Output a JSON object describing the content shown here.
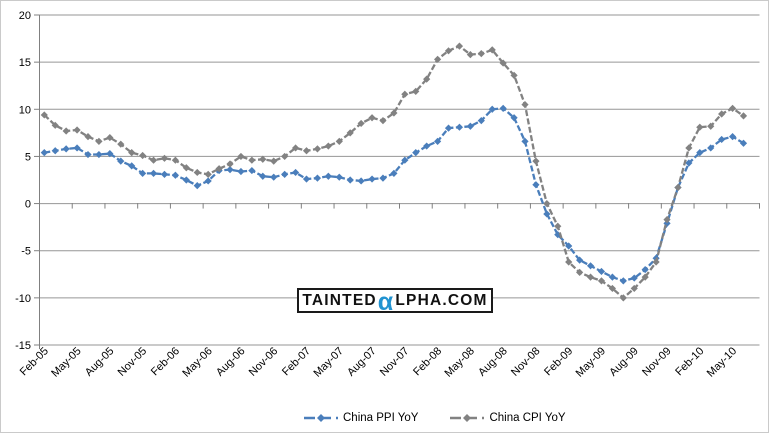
{
  "watermark": {
    "prefix": "TAINTED",
    "alpha": "α",
    "suffix": "LPHA.COM"
  },
  "colors": {
    "gridline": "#969696",
    "axis": "#808080",
    "tick_text": "#000000",
    "frame_border": "#CACACA",
    "watermark_border": "#1A1A1A",
    "watermark_alpha": "#2193D1",
    "ppi_blue": "#4A7EBB",
    "cpi_gray": "#828282"
  },
  "chart_data": {
    "type": "line",
    "title": "",
    "xlabel": "",
    "ylabel": "",
    "ylim": [
      -15,
      20
    ],
    "y_ticks": [
      20,
      15,
      10,
      5,
      0,
      -5,
      -10,
      -15
    ],
    "grid": "horizontal",
    "legend_position": "bottom",
    "marker": "diamond",
    "line_style": "dashed",
    "x_label_interval": 3,
    "x_tick_labels": [
      "Feb-05",
      "May-05",
      "Aug-05",
      "Nov-05",
      "Feb-06",
      "May-06",
      "Aug-06",
      "Nov-06",
      "Feb-07",
      "May-07",
      "Aug-07",
      "Nov-07",
      "Feb-08",
      "May-08",
      "Aug-08",
      "Nov-08",
      "Feb-09",
      "May-09",
      "Aug-09",
      "Nov-09",
      "Feb-10",
      "May-10"
    ],
    "categories": [
      "Feb-05",
      "Mar-05",
      "Apr-05",
      "May-05",
      "Jun-05",
      "Jul-05",
      "Aug-05",
      "Sep-05",
      "Oct-05",
      "Nov-05",
      "Dec-05",
      "Jan-06",
      "Feb-06",
      "Mar-06",
      "Apr-06",
      "May-06",
      "Jun-06",
      "Jul-06",
      "Aug-06",
      "Sep-06",
      "Oct-06",
      "Nov-06",
      "Dec-06",
      "Jan-07",
      "Feb-07",
      "Mar-07",
      "Apr-07",
      "May-07",
      "Jun-07",
      "Jul-07",
      "Aug-07",
      "Sep-07",
      "Oct-07",
      "Nov-07",
      "Dec-07",
      "Jan-08",
      "Feb-08",
      "Mar-08",
      "Apr-08",
      "May-08",
      "Jun-08",
      "Jul-08",
      "Aug-08",
      "Sep-08",
      "Oct-08",
      "Nov-08",
      "Dec-08",
      "Jan-09",
      "Feb-09",
      "Mar-09",
      "Apr-09",
      "May-09",
      "Jun-09",
      "Jul-09",
      "Aug-09",
      "Sep-09",
      "Oct-09",
      "Nov-09",
      "Dec-09",
      "Jan-10",
      "Feb-10",
      "Mar-10",
      "Apr-10",
      "May-10",
      "Jun-10"
    ],
    "series": [
      {
        "name": "China PPI YoY",
        "color": "#4A7EBB",
        "values": [
          5.4,
          5.6,
          5.8,
          5.9,
          5.2,
          5.2,
          5.3,
          4.5,
          4.0,
          3.2,
          3.2,
          3.1,
          3.0,
          2.5,
          1.9,
          2.4,
          3.5,
          3.6,
          3.4,
          3.5,
          2.9,
          2.8,
          3.1,
          3.3,
          2.6,
          2.7,
          2.9,
          2.8,
          2.5,
          2.4,
          2.6,
          2.7,
          3.2,
          4.6,
          5.4,
          6.1,
          6.6,
          8.0,
          8.1,
          8.2,
          8.8,
          10.0,
          10.1,
          9.1,
          6.6,
          2.0,
          -1.1,
          -3.3,
          -4.5,
          -6.0,
          -6.6,
          -7.2,
          -7.8,
          -8.2,
          -7.9,
          -7.0,
          -5.8,
          -2.1,
          1.7,
          4.3,
          5.4,
          5.9,
          6.8,
          7.1,
          6.4
        ]
      },
      {
        "name": "China CPI YoY",
        "color": "#828282",
        "values": [
          9.4,
          8.3,
          7.7,
          7.8,
          7.1,
          6.6,
          7.0,
          6.3,
          5.4,
          5.1,
          4.6,
          4.8,
          4.6,
          3.8,
          3.3,
          3.1,
          3.7,
          4.2,
          5.0,
          4.6,
          4.7,
          4.5,
          5.0,
          5.9,
          5.6,
          5.8,
          6.1,
          6.6,
          7.5,
          8.5,
          9.1,
          8.8,
          9.6,
          11.6,
          11.9,
          13.2,
          15.3,
          16.2,
          16.7,
          15.8,
          15.9,
          16.3,
          14.9,
          13.6,
          10.5,
          4.5,
          0.0,
          -2.4,
          -6.2,
          -7.3,
          -7.8,
          -8.2,
          -9.0,
          -10.0,
          -9.0,
          -7.8,
          -6.2,
          -1.7,
          1.7,
          5.9,
          8.1,
          8.2,
          9.5,
          10.1,
          9.3
        ]
      }
    ]
  }
}
